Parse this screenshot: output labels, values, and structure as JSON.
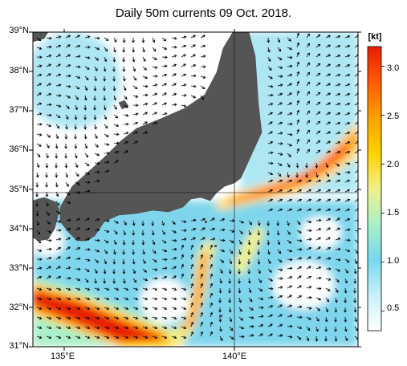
{
  "title": "Daily 50m currents 09 Oct. 2018.",
  "colorbar": {
    "unit": "[kt]",
    "ticks": [
      "0.5",
      "1.0",
      "1.5",
      "2.0",
      "2.5",
      "3.0"
    ],
    "tick_values": [
      0.5,
      1.0,
      1.5,
      2.0,
      2.5,
      3.0
    ],
    "range": [
      0.3,
      3.2
    ],
    "colors": [
      "#ffffff",
      "#c8f0fa",
      "#78d8ee",
      "#aaf0c8",
      "#f0f08c",
      "#ffd200",
      "#ffa000",
      "#ff5a00",
      "#e61e00"
    ]
  },
  "axes": {
    "lat_labels": [
      "39°N",
      "38°N",
      "37°N",
      "36°N",
      "35°N",
      "34°N",
      "33°N",
      "32°N",
      "31°N"
    ],
    "lat_values": [
      39,
      38,
      37,
      36,
      35,
      34,
      33,
      32,
      31
    ],
    "lon_labels": [
      "135°E",
      "140°E"
    ],
    "lon_values": [
      135,
      140
    ],
    "lon_range": [
      134.2,
      142.7
    ],
    "lat_range": [
      31,
      39
    ]
  },
  "colors": {
    "land": "#555555",
    "ocean_calm": "#ffffff",
    "gridline": "#000000"
  }
}
